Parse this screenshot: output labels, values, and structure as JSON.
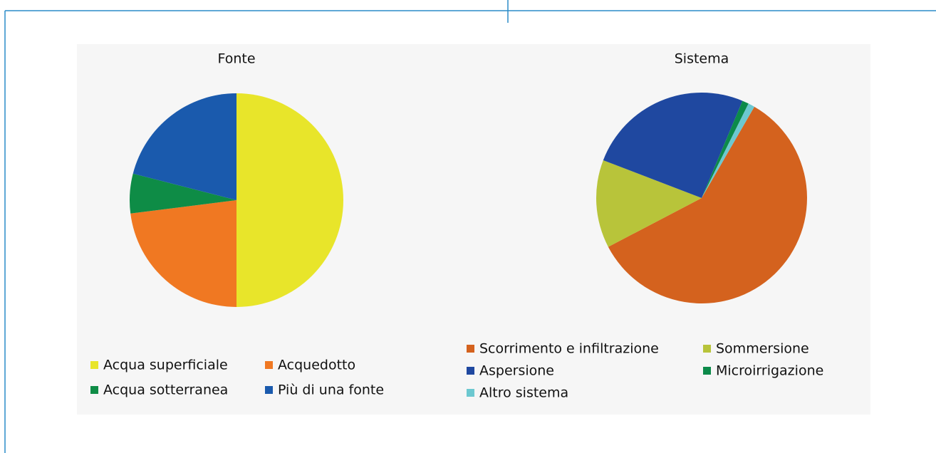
{
  "chart_data": [
    {
      "type": "pie",
      "title": "Fonte",
      "categories": [
        "Acqua superficiale",
        "Acquedotto",
        "Acqua sotterranea",
        "Più di una fonte"
      ],
      "values": [
        50,
        23,
        6,
        21
      ],
      "colors": [
        "#e8e52a",
        "#f07822",
        "#0e8c46",
        "#1a5aad"
      ],
      "start_angle": 0
    },
    {
      "type": "pie",
      "title": "Sistema",
      "categories": [
        "Scorrimento e infiltrazione",
        "Sommersione",
        "Aspersione",
        "Microirrigazione",
        "Altro sistema"
      ],
      "values": [
        59,
        13.5,
        25.5,
        1,
        1
      ],
      "colors": [
        "#d4621e",
        "#b8c43a",
        "#1f48a0",
        "#0c8a4a",
        "#6cc8d0"
      ],
      "start_angle": 30
    }
  ]
}
